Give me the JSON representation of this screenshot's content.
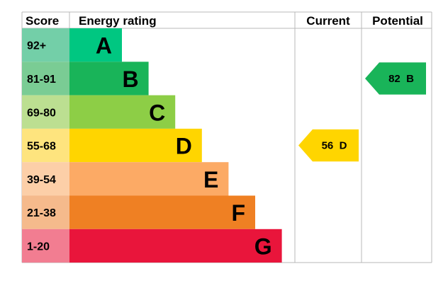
{
  "chart_data": {
    "type": "bar",
    "title": "",
    "headers": {
      "score": "Score",
      "rating": "Energy rating",
      "current": "Current",
      "potential": "Potential"
    },
    "bands": [
      {
        "score": "92+",
        "letter": "A",
        "color": "#00c781",
        "score_bg": "#73cfa8",
        "length": 1
      },
      {
        "score": "81-91",
        "letter": "B",
        "color": "#19b459",
        "score_bg": "#7acc94",
        "length": 2
      },
      {
        "score": "69-80",
        "letter": "C",
        "color": "#8dce46",
        "score_bg": "#bcdf91",
        "length": 3
      },
      {
        "score": "55-68",
        "letter": "D",
        "color": "#ffd500",
        "score_bg": "#fee47e",
        "length": 4
      },
      {
        "score": "39-54",
        "letter": "E",
        "color": "#fcaa65",
        "score_bg": "#fccfa8",
        "length": 5
      },
      {
        "score": "21-38",
        "letter": "F",
        "color": "#ef8023",
        "score_bg": "#f5ba8c",
        "length": 6
      },
      {
        "score": "1-20",
        "letter": "G",
        "color": "#e9153b",
        "score_bg": "#f27d91",
        "length": 7
      }
    ],
    "current": {
      "value": 56,
      "letter": "D",
      "label": "56  D",
      "color": "#ffd500"
    },
    "potential": {
      "value": 82,
      "letter": "B",
      "label": "82  B",
      "color": "#19b459"
    }
  }
}
